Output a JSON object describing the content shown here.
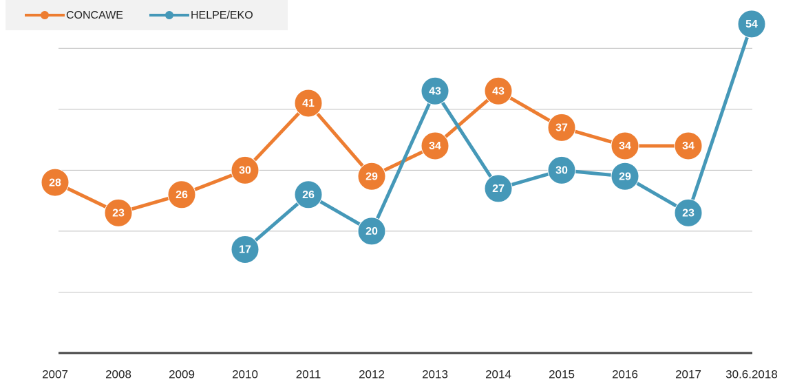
{
  "chart_data": {
    "type": "line",
    "categories": [
      "2007",
      "2008",
      "2009",
      "2010",
      "2011",
      "2012",
      "2013",
      "2014",
      "2015",
      "2016",
      "2017",
      "30.6.2018"
    ],
    "series": [
      {
        "name": "CONCAWE",
        "color": "#ed7d31",
        "values": [
          28,
          23,
          26,
          30,
          41,
          29,
          34,
          43,
          37,
          34,
          34,
          null
        ]
      },
      {
        "name": "HELPE/EKO",
        "color": "#4598b8",
        "values": [
          null,
          null,
          null,
          17,
          26,
          20,
          43,
          27,
          30,
          29,
          23,
          54
        ]
      }
    ],
    "ylim": [
      0,
      55
    ],
    "yticks": [
      0,
      10,
      20,
      30,
      40,
      50
    ],
    "grid": true,
    "legend": "top-left"
  }
}
